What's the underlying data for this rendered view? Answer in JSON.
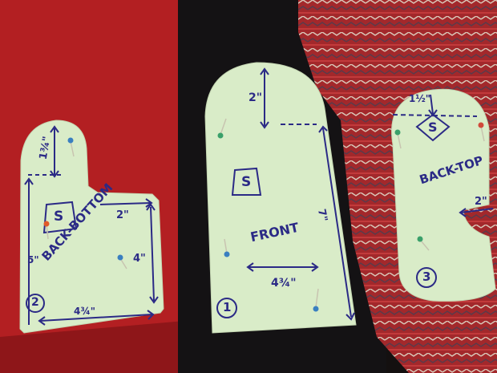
{
  "photo": {
    "fabrics": [
      {
        "name": "red wool sweater",
        "color": "#b31f22"
      },
      {
        "name": "black knit",
        "color": "#141214"
      },
      {
        "name": "red fair-isle knit",
        "color": "#a82a2c"
      }
    ],
    "pattern_paper_color": "#d9ecc8",
    "ink_color": "#2b2a86"
  },
  "pieces": {
    "back_bottom": {
      "height_label": "1¾\"",
      "s_label": "S",
      "name_label": "BACK-BOTTOM",
      "width_top_label": "2\"",
      "side_label": "5\"",
      "right_label": "4\"",
      "width_bottom_label": "4¾\"",
      "number_label": "2"
    },
    "front": {
      "top_label": "2\"",
      "s_label": "S",
      "name_label": "FRONT",
      "length_label": "7\"",
      "width_label": "4¾\"",
      "number_label": "1"
    },
    "back_top": {
      "top_label": "1½\"",
      "s_label": "S",
      "name_label": "BACK-TOP",
      "thumb_label": "2\"",
      "number_label": "3"
    }
  }
}
